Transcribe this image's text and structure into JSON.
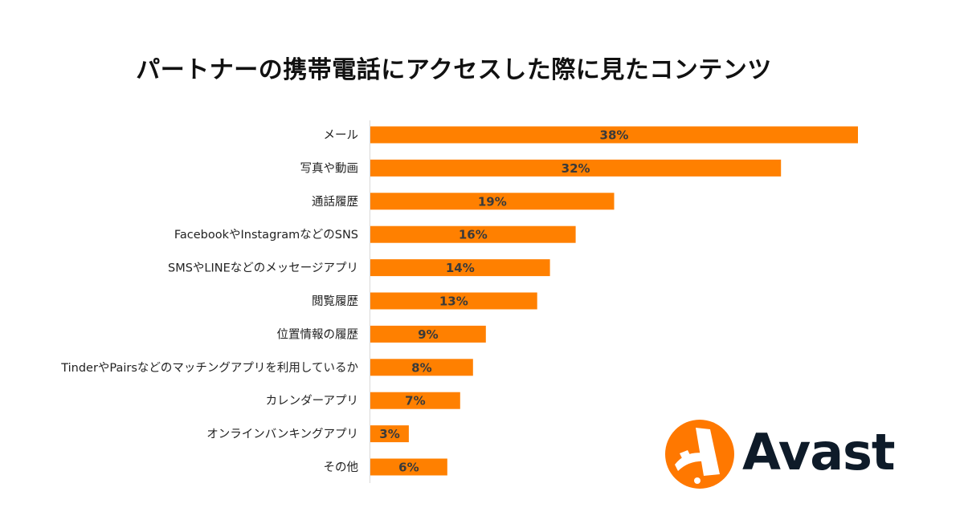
{
  "chart_data": {
    "type": "bar",
    "orientation": "horizontal",
    "title": "パートナーの携帯電話にアクセスした際に見たコンテンツ",
    "categories": [
      "メール",
      "写真や動画",
      "通話履歴",
      "FacebookやInstagramなどのSNS",
      "SMSやLINEなどのメッセージアプリ",
      "閲覧履歴",
      "位置情報の履歴",
      "TinderやPairsなどのマッチングアプリを利用しているか",
      "カレンダーアプリ",
      "オンラインバンキングアプリ",
      "その他"
    ],
    "values": [
      38,
      32,
      19,
      16,
      14,
      13,
      9,
      8,
      7,
      3,
      6
    ],
    "value_labels": [
      "38%",
      "32%",
      "19%",
      "16%",
      "14%",
      "13%",
      "9%",
      "8%",
      "7%",
      "3%",
      "6%"
    ],
    "unit": "%",
    "xlim": [
      0,
      38
    ],
    "bar_color": "#ff8000",
    "grid": false,
    "legend": "none"
  },
  "brand": {
    "name": "Avast",
    "icon": "avast-logo-icon",
    "color": "#ff7800",
    "text_color": "#0e1b29"
  }
}
